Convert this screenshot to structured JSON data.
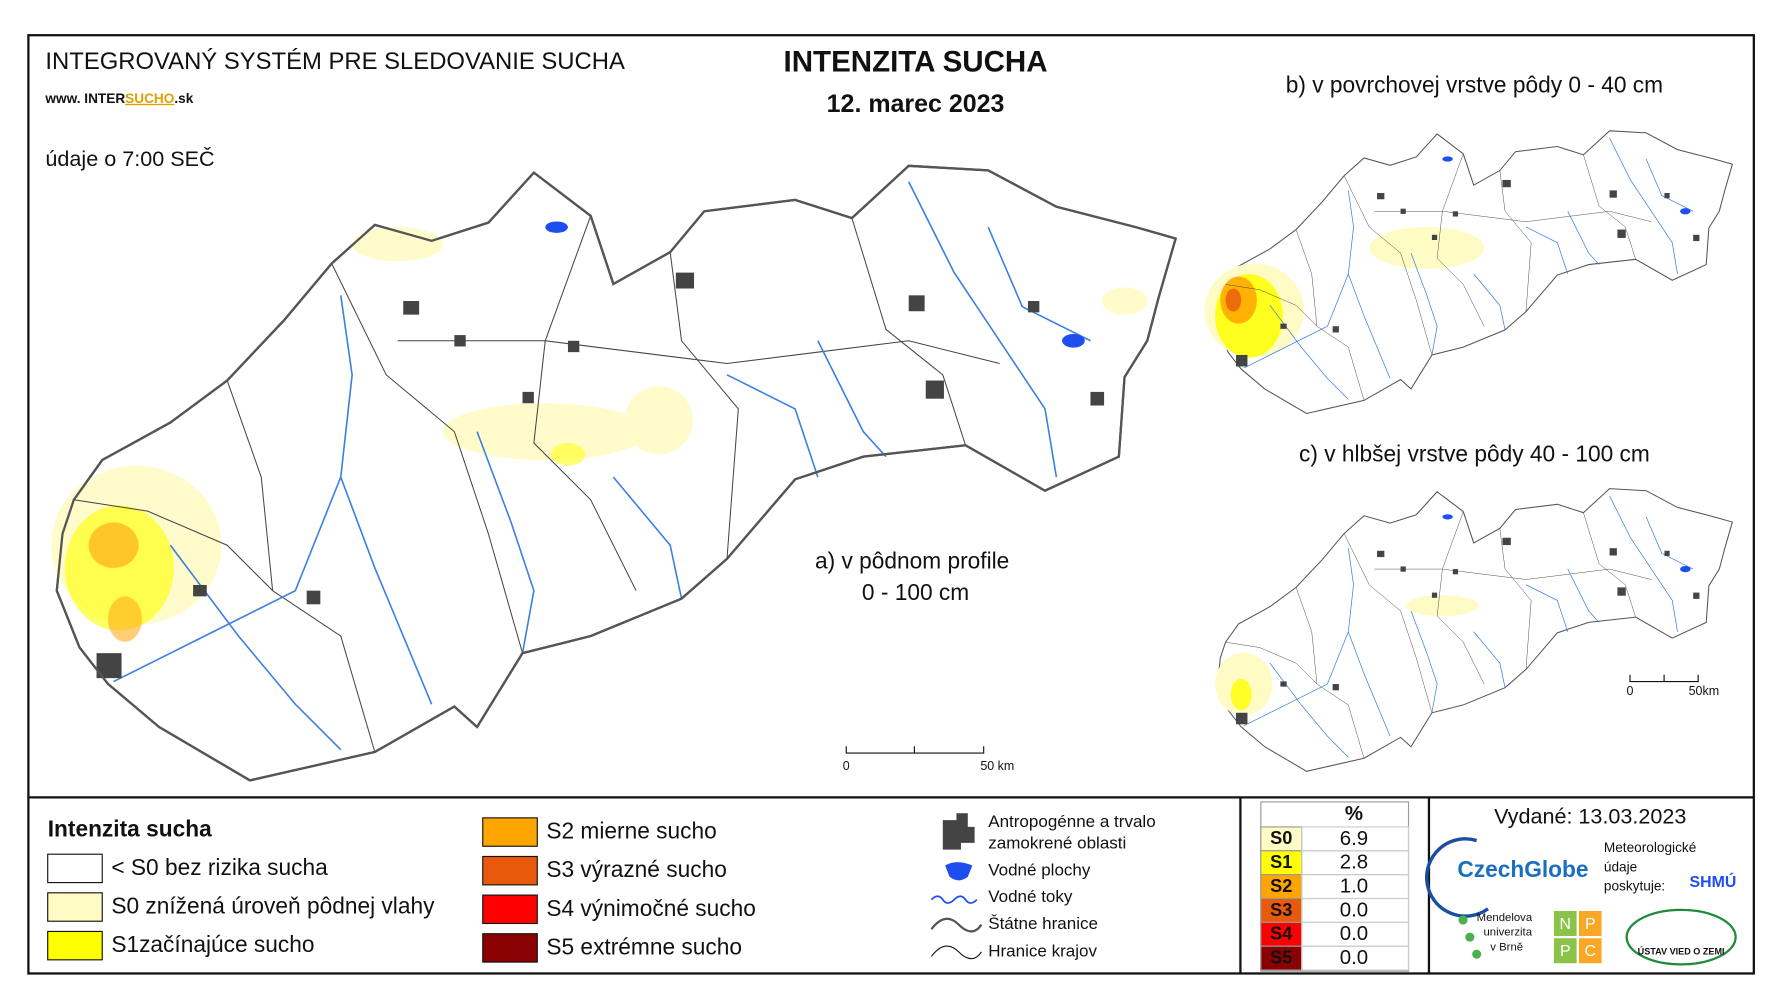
{
  "header": {
    "system_title": "INTEGROVANÝ SYSTÉM PRE SLEDOVANIE SUCHA",
    "url": {
      "prefix": "www. INTER",
      "highlight": "SUCHO",
      "suffix": ".sk"
    },
    "time_note": "údaje o 7:00 SEČ",
    "title": "INTENZITA SUCHA",
    "date": "12. marec 2023"
  },
  "maps": {
    "a": {
      "label_line1": "a) v pôdnom profile",
      "label_line2": "0 - 100 cm",
      "scale_start": "0",
      "scale_end": "50 km"
    },
    "b": {
      "label": "b) v povrchovej vrstve pôdy 0 - 40 cm"
    },
    "c": {
      "label": "c) v hlbšej vrstve pôdy 40 - 100 cm",
      "scale_start": "0",
      "scale_end": "50km"
    }
  },
  "legend": {
    "title": "Intenzita sucha",
    "items": [
      {
        "label": "< S0 bez rizika sucha",
        "color": "#ffffff"
      },
      {
        "label": "S0 znížená úroveň pôdnej vlahy",
        "color": "#fffbc4"
      },
      {
        "label": "S1začínajúce sucho",
        "color": "#ffff00"
      },
      {
        "label": "S2 mierne sucho",
        "color": "#ffa500"
      },
      {
        "label": "S3 výrazné sucho",
        "color": "#e8590c"
      },
      {
        "label": "S4 výnimočné sucho",
        "color": "#ff0000"
      },
      {
        "label": "S5 extrémne sucho",
        "color": "#8b0000"
      }
    ]
  },
  "symbols": {
    "urban_line1": "Antropogénne a trvalo",
    "urban_line2": "zamokrené oblasti",
    "water_bodies": "Vodné plochy",
    "rivers": "Vodné toky",
    "state_borders": "Štátne hranice",
    "region_borders": "Hranice krajov"
  },
  "stats": {
    "header": "%",
    "rows": [
      {
        "class": "S0",
        "value": "6.9",
        "color": "#fffbc4"
      },
      {
        "class": "S1",
        "value": "2.8",
        "color": "#ffff00"
      },
      {
        "class": "S2",
        "value": "1.0",
        "color": "#ffa500"
      },
      {
        "class": "S3",
        "value": "0.0",
        "color": "#e8590c"
      },
      {
        "class": "S4",
        "value": "0.0",
        "color": "#ff0000"
      },
      {
        "class": "S5",
        "value": "0.0",
        "color": "#8b0000"
      }
    ]
  },
  "issued": "Vydané: 13.03.2023",
  "logos": {
    "czechglobe": "CzechGlobe",
    "meteo_line1": "Meteorologické",
    "meteo_line2": "údaje",
    "meteo_line3": "poskytuje:",
    "shmu": "SHMÚ",
    "mendel_line1": "Mendelova",
    "mendel_line2": "univerzita",
    "mendel_line3": "v Brně",
    "npp": [
      "N",
      "P",
      "P",
      "C"
    ],
    "uvz": "ÚSTAV VIED O ZEMI"
  }
}
